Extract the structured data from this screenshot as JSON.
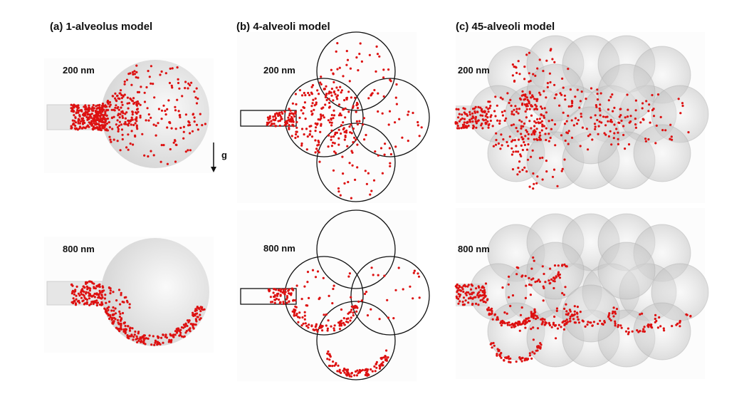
{
  "panels": [
    {
      "title": "(a) 1-alveolus model",
      "sizes": [
        "200 nm",
        "800 nm"
      ],
      "gravity_label": "g"
    },
    {
      "title": "(b) 4-alveoli model",
      "sizes": [
        "200 nm",
        "800 nm"
      ]
    },
    {
      "title": "(c) 45-alveoli model",
      "sizes": [
        "200 nm",
        "800 nm"
      ]
    }
  ],
  "colors": {
    "particle": "#dd1111",
    "sphere": "#e4e4e4",
    "outline": "#111111"
  }
}
